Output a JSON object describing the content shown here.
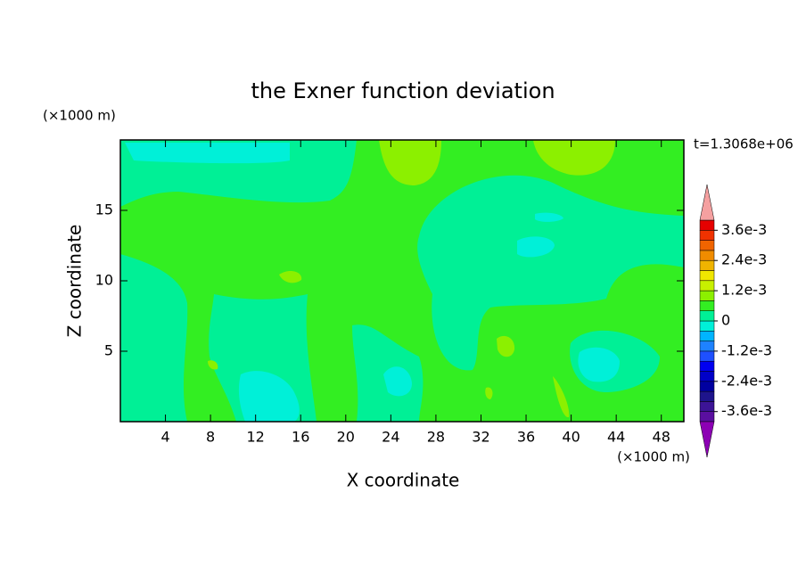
{
  "chart_data": {
    "type": "contour",
    "title": "the Exner function deviation",
    "xlabel": "X coordinate",
    "ylabel": "Z coordinate",
    "x_unit": "(×1000 m)",
    "y_unit": "(×1000 m)",
    "annotation": "t=1.3068e+06",
    "xlim": [
      0,
      50
    ],
    "ylim": [
      0,
      20
    ],
    "xticks": [
      4,
      8,
      12,
      16,
      20,
      24,
      28,
      32,
      36,
      40,
      44,
      48
    ],
    "yticks": [
      5,
      10,
      15
    ],
    "colorbar": {
      "lim": [
        -0.004,
        0.004
      ],
      "ticks": [
        {
          "value": 0.0036,
          "label": "3.6e-3"
        },
        {
          "value": 0.0024,
          "label": "2.4e-3"
        },
        {
          "value": 0.0012,
          "label": "1.2e-3"
        },
        0,
        {
          "value": -0.0012,
          "label": "-1.2e-3"
        },
        {
          "value": -0.0024,
          "label": "-2.4e-3"
        },
        {
          "value": -0.0036,
          "label": "-3.6e-3"
        }
      ],
      "colors": [
        "#5a0fa0",
        "#3c1496",
        "#1e148c",
        "#0000a0",
        "#0000c8",
        "#0000f0",
        "#1e50ff",
        "#1e82ff",
        "#00b4ff",
        "#00f0d8",
        "#00f096",
        "#33ee22",
        "#8cf000",
        "#c8f000",
        "#f0e600",
        "#f0b400",
        "#f08c00",
        "#f06400",
        "#f03200",
        "#e60000"
      ],
      "under_color": "#8c00b4",
      "over_color": "#f5a0a0"
    }
  }
}
